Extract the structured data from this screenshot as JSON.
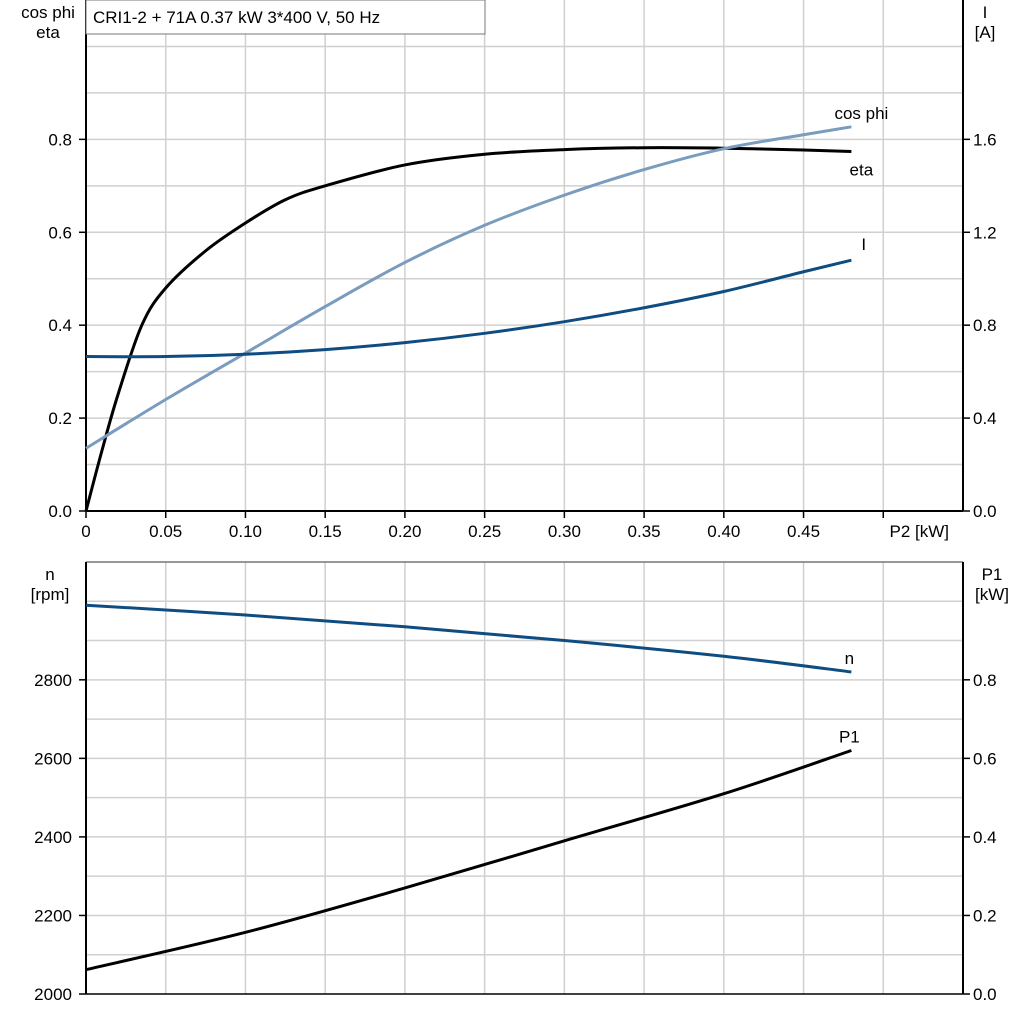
{
  "title": "CRI1-2 + 71A   0.37 kW   3*400 V, 50 Hz",
  "colors": {
    "eta": "#000000",
    "cos_phi": "#7a9cbd",
    "I": "#0f4c81",
    "n": "#0f4c81",
    "P1": "#000000",
    "grid": "#d0d0d0"
  },
  "chart_data": [
    {
      "type": "line",
      "xlabel": "P2 [kW]",
      "ylabel_left": [
        "cos phi",
        "eta"
      ],
      "ylabel_right": [
        "I",
        "[A]"
      ],
      "xlim": [
        0,
        0.55
      ],
      "ylim_left": [
        0,
        1.1
      ],
      "ylim_right": [
        0,
        2.2
      ],
      "x_ticks": [
        "0",
        "0.05",
        "0.10",
        "0.15",
        "0.20",
        "0.25",
        "0.30",
        "0.35",
        "0.40",
        "0.45"
      ],
      "y_ticks_left": [
        "0.0",
        "0.2",
        "0.4",
        "0.6",
        "0.8"
      ],
      "y_ticks_right": [
        "0.0",
        "0.4",
        "0.8",
        "1.2",
        "1.6"
      ],
      "grid": true,
      "series": [
        {
          "name": "eta",
          "axis": "left",
          "x": [
            0,
            0.01,
            0.02,
            0.035,
            0.05,
            0.075,
            0.1,
            0.125,
            0.15,
            0.2,
            0.25,
            0.3,
            0.35,
            0.4,
            0.45,
            0.48
          ],
          "y": [
            0,
            0.13,
            0.25,
            0.4,
            0.48,
            0.56,
            0.62,
            0.67,
            0.7,
            0.745,
            0.768,
            0.778,
            0.782,
            0.781,
            0.777,
            0.774
          ]
        },
        {
          "name": "cos phi",
          "axis": "left",
          "x": [
            0,
            0.05,
            0.1,
            0.15,
            0.2,
            0.25,
            0.3,
            0.35,
            0.4,
            0.45,
            0.48
          ],
          "y": [
            0.135,
            0.24,
            0.34,
            0.44,
            0.535,
            0.615,
            0.68,
            0.735,
            0.78,
            0.81,
            0.827
          ]
        },
        {
          "name": "I",
          "axis": "right",
          "x": [
            0,
            0.05,
            0.1,
            0.15,
            0.2,
            0.25,
            0.3,
            0.35,
            0.4,
            0.45,
            0.48
          ],
          "y": [
            0.665,
            0.665,
            0.675,
            0.695,
            0.725,
            0.765,
            0.815,
            0.875,
            0.945,
            1.03,
            1.08
          ]
        }
      ]
    },
    {
      "type": "line",
      "ylabel_left": [
        "n",
        "[rpm]"
      ],
      "ylabel_right": [
        "P1",
        "[kW]"
      ],
      "xlim": [
        0,
        0.55
      ],
      "ylim_left": [
        2000,
        3100
      ],
      "ylim_right": [
        0,
        1.1
      ],
      "y_ticks_left": [
        "2000",
        "2200",
        "2400",
        "2600",
        "2800"
      ],
      "y_ticks_right": [
        "0.0",
        "0.2",
        "0.4",
        "0.6",
        "0.8"
      ],
      "grid": true,
      "series": [
        {
          "name": "n",
          "axis": "left",
          "x": [
            0,
            0.1,
            0.2,
            0.3,
            0.4,
            0.48
          ],
          "y": [
            2990,
            2965,
            2935,
            2900,
            2860,
            2820
          ]
        },
        {
          "name": "P1",
          "axis": "right",
          "x": [
            0,
            0.1,
            0.2,
            0.3,
            0.4,
            0.48
          ],
          "y": [
            0.062,
            0.157,
            0.27,
            0.39,
            0.51,
            0.62
          ]
        }
      ]
    }
  ]
}
